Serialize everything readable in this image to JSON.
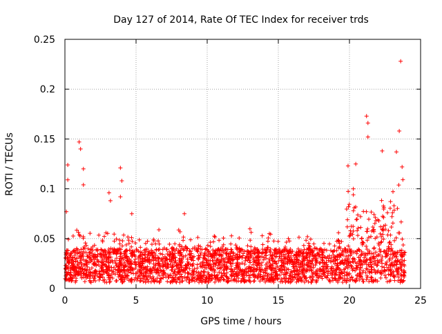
{
  "chart_data": {
    "type": "scatter",
    "title": "Day 127 of 2014, Rate Of TEC Index for receiver trds",
    "xlabel": "GPS time / hours",
    "ylabel": "ROTI / TECUs",
    "xlim": [
      0,
      25
    ],
    "ylim": [
      0,
      0.25
    ],
    "x_ticks": [
      0,
      5,
      10,
      15,
      20,
      25
    ],
    "x_tick_labels": [
      "0",
      "5",
      "10",
      "15",
      "20",
      "25"
    ],
    "y_ticks": [
      0,
      0.05,
      0.1,
      0.15,
      0.2,
      0.25
    ],
    "y_tick_labels": [
      "0",
      "0.05",
      "0.1",
      "0.15",
      "0.2",
      "0.25"
    ],
    "grid": true,
    "marker": "+",
    "series_color": "#ff0000",
    "time_range_hours": [
      0,
      23.9
    ],
    "notable_points": [
      {
        "x": 0.1,
        "y": 0.077
      },
      {
        "x": 0.2,
        "y": 0.124
      },
      {
        "x": 0.2,
        "y": 0.109
      },
      {
        "x": 1.0,
        "y": 0.147
      },
      {
        "x": 1.1,
        "y": 0.14
      },
      {
        "x": 1.3,
        "y": 0.12
      },
      {
        "x": 1.3,
        "y": 0.104
      },
      {
        "x": 3.1,
        "y": 0.096
      },
      {
        "x": 3.2,
        "y": 0.088
      },
      {
        "x": 3.9,
        "y": 0.121
      },
      {
        "x": 4.0,
        "y": 0.108
      },
      {
        "x": 3.9,
        "y": 0.092
      },
      {
        "x": 4.7,
        "y": 0.075
      },
      {
        "x": 8.4,
        "y": 0.075
      },
      {
        "x": 19.9,
        "y": 0.123
      },
      {
        "x": 21.2,
        "y": 0.173
      },
      {
        "x": 21.3,
        "y": 0.166
      },
      {
        "x": 21.3,
        "y": 0.152
      },
      {
        "x": 22.3,
        "y": 0.138
      },
      {
        "x": 23.3,
        "y": 0.137
      },
      {
        "x": 23.5,
        "y": 0.158
      },
      {
        "x": 23.6,
        "y": 0.228
      },
      {
        "x": 23.7,
        "y": 0.122
      }
    ],
    "background_band": {
      "description": "dense scatter of ROTI values across the day",
      "baseline_min": 0.006,
      "baseline_typical_max": 0.04,
      "active_window_hours": [
        19.8,
        23.8
      ]
    }
  }
}
